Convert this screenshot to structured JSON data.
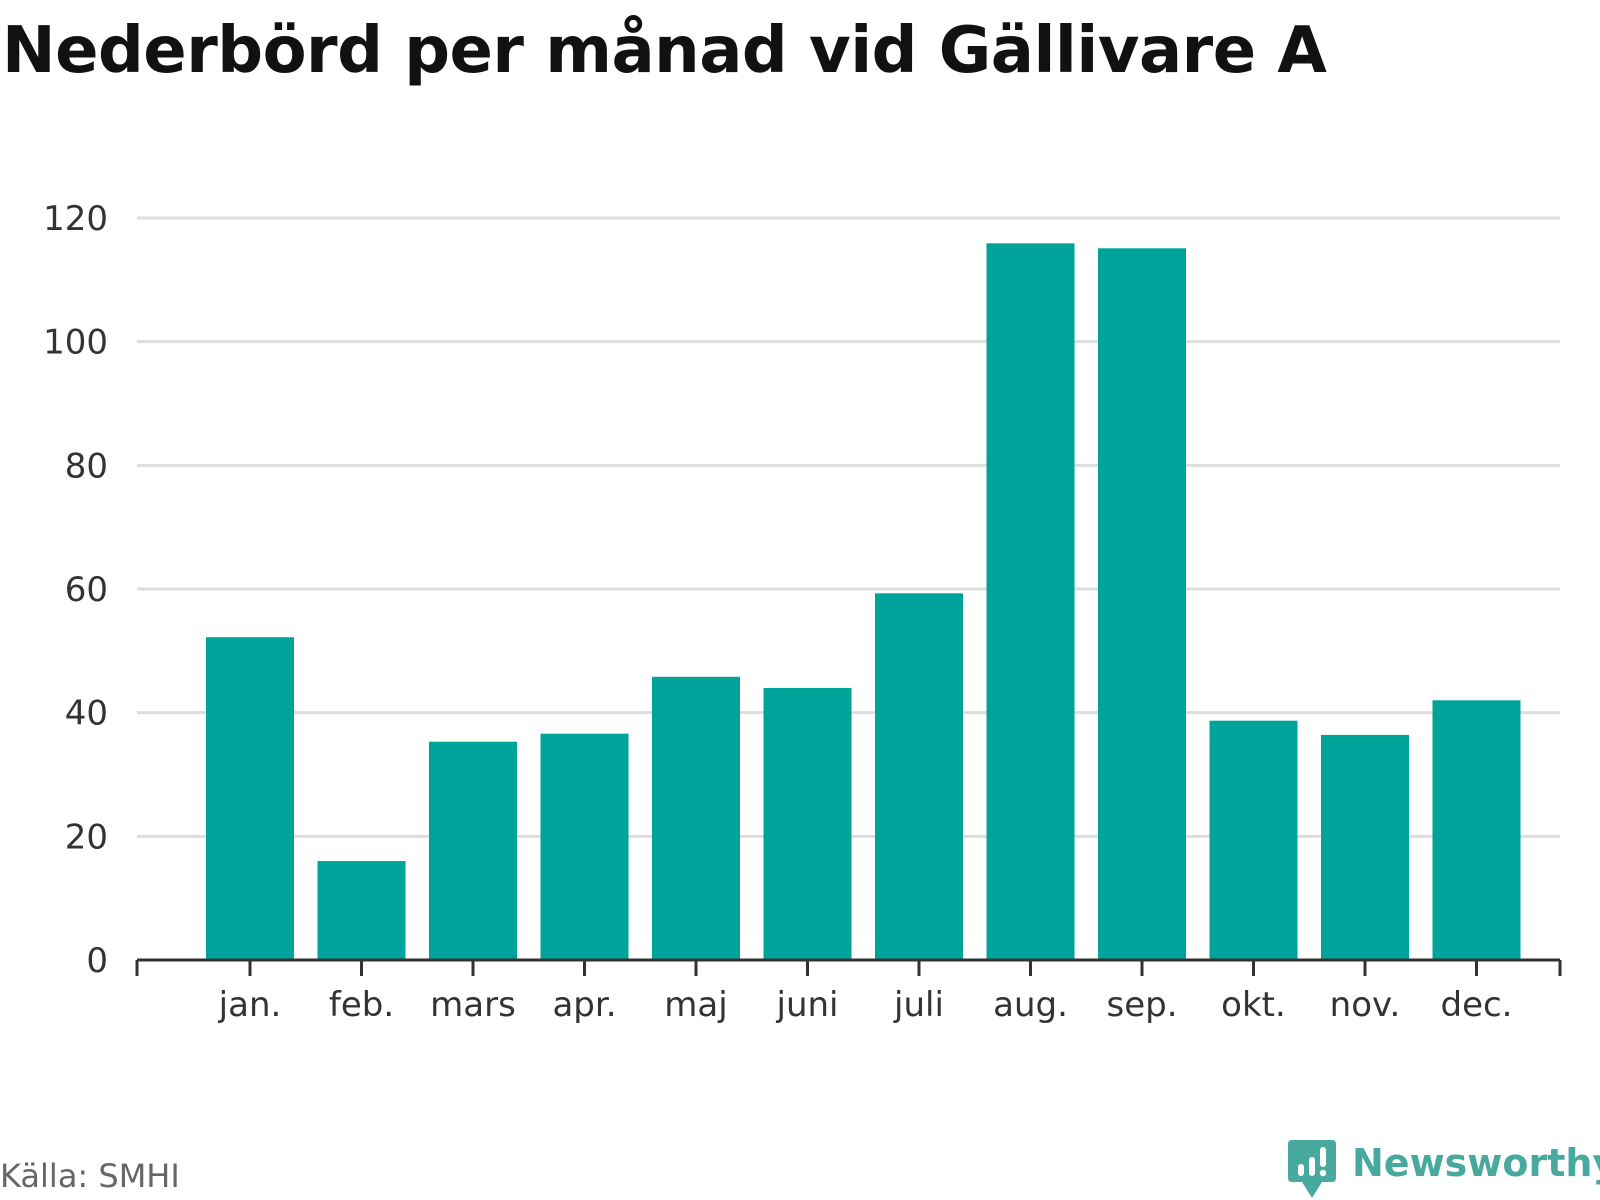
{
  "colors": {
    "bar": "#00a39a",
    "grid": "#dddddd",
    "axis": "#333333",
    "brand": "#48a99e"
  },
  "chart_data": {
    "type": "bar",
    "title": "Nederbörd per månad vid Gällivare A",
    "categories": [
      "jan.",
      "feb.",
      "mars",
      "apr.",
      "maj",
      "juni",
      "juli",
      "aug.",
      "sep.",
      "okt.",
      "nov.",
      "dec."
    ],
    "values": [
      52.2,
      16.0,
      35.3,
      36.6,
      45.8,
      44.0,
      59.3,
      115.9,
      115.1,
      38.7,
      36.4,
      42.0
    ],
    "ylim": [
      0,
      120
    ],
    "yticks": [
      0,
      20,
      40,
      60,
      80,
      100,
      120
    ],
    "ytick_labels": [
      "0",
      "20",
      "40",
      "60",
      "80",
      "100",
      "120"
    ],
    "xlabel": "",
    "ylabel": "",
    "grid": true,
    "legend": "none"
  },
  "footer": {
    "source": "Källa: SMHI",
    "brand_name": "Newsworthy",
    "brand_icon": "newsworthy-logo-icon"
  }
}
